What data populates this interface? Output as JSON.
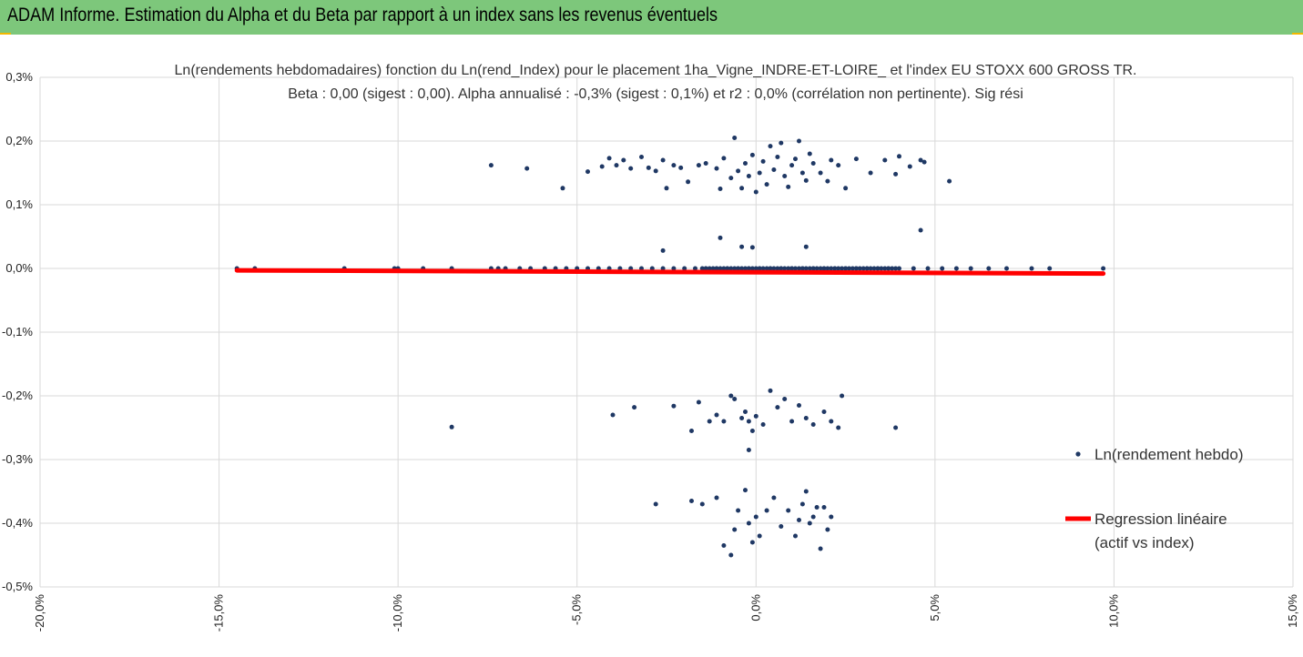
{
  "banner": {
    "title": "ADAM Informe. Estimation du Alpha et du Beta par rapport à un index sans les revenus éventuels",
    "background": "#7dc77b",
    "corner_color": "#f2b800"
  },
  "chart_data": {
    "type": "scatter",
    "title": "Ln(rendements hebdomadaires) fonction du Ln(rend_Index) pour le placement 1ha_Vigne_INDRE-ET-LOIRE_ et l'index EU STOXX 600 GROSS TR.",
    "subtitle": "Beta : 0,00 (sigest : 0,00).  Alpha annualisé : -0,3% (sigest : 0,1%) et r2 : 0,0% (corrélation non pertinente). Sig rési",
    "xlabel": "",
    "ylabel": "",
    "xlim": [
      -20,
      15
    ],
    "ylim": [
      -0.5,
      0.3
    ],
    "x_ticks": [
      "-20,0%",
      "-15,0%",
      "-10,0%",
      "-5,0%",
      "0,0%",
      "5,0%",
      "10,0%",
      "15,0%"
    ],
    "y_ticks": [
      "0,3%",
      "0,2%",
      "0,1%",
      "0,0%",
      "-0,1%",
      "-0,2%",
      "-0,3%",
      "-0,4%",
      "-0,5%"
    ],
    "grid": true,
    "legend_position": "right",
    "series": [
      {
        "name": "Ln(rendement hebdo)",
        "color": "#1f3864",
        "points": [
          [
            -14.5,
            0.0
          ],
          [
            -14.0,
            0.0
          ],
          [
            -11.5,
            0.0
          ],
          [
            -10.1,
            0.0
          ],
          [
            -10.0,
            0.0
          ],
          [
            -9.3,
            0.0
          ],
          [
            -8.5,
            0.0
          ],
          [
            -7.4,
            0.0
          ],
          [
            -7.2,
            0.0
          ],
          [
            -7.0,
            0.0
          ],
          [
            -6.6,
            0.0
          ],
          [
            -6.3,
            0.0
          ],
          [
            -5.9,
            0.0
          ],
          [
            -5.6,
            0.0
          ],
          [
            -5.3,
            0.0
          ],
          [
            -5.0,
            0.0
          ],
          [
            -4.7,
            0.0
          ],
          [
            -4.4,
            0.0
          ],
          [
            -4.1,
            0.0
          ],
          [
            -3.8,
            0.0
          ],
          [
            -3.5,
            0.0
          ],
          [
            -3.2,
            0.0
          ],
          [
            -2.9,
            0.0
          ],
          [
            -2.6,
            0.0
          ],
          [
            -2.3,
            0.0
          ],
          [
            -2.0,
            0.0
          ],
          [
            -1.7,
            0.0
          ],
          [
            -1.4,
            0.0
          ],
          [
            -1.1,
            0.0
          ],
          [
            -0.8,
            0.0
          ],
          [
            -0.5,
            0.0
          ],
          [
            -0.2,
            0.0
          ],
          [
            0.1,
            0.0
          ],
          [
            0.4,
            0.0
          ],
          [
            0.7,
            0.0
          ],
          [
            1.0,
            0.0
          ],
          [
            1.3,
            0.0
          ],
          [
            1.6,
            0.0
          ],
          [
            1.9,
            0.0
          ],
          [
            2.2,
            0.0
          ],
          [
            2.5,
            0.0
          ],
          [
            2.8,
            0.0
          ],
          [
            3.1,
            0.0
          ],
          [
            3.4,
            0.0
          ],
          [
            3.7,
            0.0
          ],
          [
            4.0,
            0.0
          ],
          [
            4.4,
            0.0
          ],
          [
            4.8,
            0.0
          ],
          [
            5.2,
            0.0
          ],
          [
            5.6,
            0.0
          ],
          [
            6.0,
            0.0
          ],
          [
            6.5,
            0.0
          ],
          [
            7.0,
            0.0
          ],
          [
            7.7,
            0.0
          ],
          [
            8.2,
            0.0
          ],
          [
            9.7,
            0.0
          ],
          [
            -7.4,
            0.162
          ],
          [
            -6.4,
            0.157
          ],
          [
            -5.4,
            0.126
          ],
          [
            -4.7,
            0.152
          ],
          [
            -4.3,
            0.16
          ],
          [
            -4.1,
            0.173
          ],
          [
            -3.9,
            0.162
          ],
          [
            -3.7,
            0.17
          ],
          [
            -3.5,
            0.157
          ],
          [
            -3.2,
            0.175
          ],
          [
            -3.0,
            0.158
          ],
          [
            -2.8,
            0.153
          ],
          [
            -2.6,
            0.17
          ],
          [
            -2.5,
            0.126
          ],
          [
            -2.3,
            0.162
          ],
          [
            -2.1,
            0.158
          ],
          [
            -1.9,
            0.136
          ],
          [
            -1.6,
            0.162
          ],
          [
            -1.4,
            0.165
          ],
          [
            -1.1,
            0.157
          ],
          [
            -1.0,
            0.125
          ],
          [
            -0.9,
            0.173
          ],
          [
            -0.7,
            0.142
          ],
          [
            -0.6,
            0.205
          ],
          [
            -0.5,
            0.153
          ],
          [
            -0.4,
            0.126
          ],
          [
            -0.3,
            0.165
          ],
          [
            -0.2,
            0.145
          ],
          [
            -0.1,
            0.178
          ],
          [
            0.0,
            0.12
          ],
          [
            0.1,
            0.15
          ],
          [
            0.2,
            0.168
          ],
          [
            0.3,
            0.132
          ],
          [
            0.4,
            0.192
          ],
          [
            0.5,
            0.155
          ],
          [
            0.6,
            0.175
          ],
          [
            0.7,
            0.197
          ],
          [
            0.8,
            0.145
          ],
          [
            0.9,
            0.128
          ],
          [
            1.0,
            0.162
          ],
          [
            1.1,
            0.172
          ],
          [
            1.2,
            0.2
          ],
          [
            1.3,
            0.15
          ],
          [
            1.4,
            0.138
          ],
          [
            1.5,
            0.18
          ],
          [
            1.6,
            0.165
          ],
          [
            1.8,
            0.15
          ],
          [
            2.0,
            0.137
          ],
          [
            2.1,
            0.17
          ],
          [
            2.3,
            0.162
          ],
          [
            2.5,
            0.126
          ],
          [
            2.8,
            0.172
          ],
          [
            3.2,
            0.15
          ],
          [
            3.6,
            0.17
          ],
          [
            3.9,
            0.148
          ],
          [
            4.0,
            0.176
          ],
          [
            4.3,
            0.16
          ],
          [
            4.6,
            0.17
          ],
          [
            4.7,
            0.167
          ],
          [
            5.4,
            0.137
          ],
          [
            -2.6,
            0.028
          ],
          [
            -1.0,
            0.048
          ],
          [
            -0.4,
            0.034
          ],
          [
            -0.1,
            0.033
          ],
          [
            1.4,
            0.034
          ],
          [
            4.6,
            0.06
          ],
          [
            -8.5,
            -0.249
          ],
          [
            -4.0,
            -0.23
          ],
          [
            -3.4,
            -0.218
          ],
          [
            -2.3,
            -0.216
          ],
          [
            -1.8,
            -0.255
          ],
          [
            -1.6,
            -0.21
          ],
          [
            -1.3,
            -0.24
          ],
          [
            -1.1,
            -0.23
          ],
          [
            -0.9,
            -0.24
          ],
          [
            -0.7,
            -0.2
          ],
          [
            -0.6,
            -0.205
          ],
          [
            -0.4,
            -0.235
          ],
          [
            -0.3,
            -0.225
          ],
          [
            -0.2,
            -0.24
          ],
          [
            -0.1,
            -0.255
          ],
          [
            0.0,
            -0.232
          ],
          [
            0.2,
            -0.245
          ],
          [
            0.4,
            -0.192
          ],
          [
            0.6,
            -0.218
          ],
          [
            0.8,
            -0.205
          ],
          [
            1.0,
            -0.24
          ],
          [
            1.2,
            -0.215
          ],
          [
            1.4,
            -0.235
          ],
          [
            1.6,
            -0.245
          ],
          [
            1.9,
            -0.225
          ],
          [
            2.1,
            -0.24
          ],
          [
            2.3,
            -0.25
          ],
          [
            2.4,
            -0.2
          ],
          [
            3.9,
            -0.25
          ],
          [
            -0.2,
            -0.285
          ],
          [
            -2.8,
            -0.37
          ],
          [
            -1.8,
            -0.365
          ],
          [
            -1.5,
            -0.37
          ],
          [
            -1.1,
            -0.36
          ],
          [
            -0.9,
            -0.435
          ],
          [
            -0.7,
            -0.45
          ],
          [
            -0.6,
            -0.41
          ],
          [
            -0.5,
            -0.38
          ],
          [
            -0.3,
            -0.348
          ],
          [
            -0.2,
            -0.4
          ],
          [
            0.0,
            -0.39
          ],
          [
            0.1,
            -0.42
          ],
          [
            0.3,
            -0.38
          ],
          [
            0.5,
            -0.36
          ],
          [
            0.7,
            -0.405
          ],
          [
            0.9,
            -0.38
          ],
          [
            1.1,
            -0.42
          ],
          [
            1.2,
            -0.395
          ],
          [
            1.3,
            -0.37
          ],
          [
            1.4,
            -0.35
          ],
          [
            1.5,
            -0.4
          ],
          [
            1.6,
            -0.39
          ],
          [
            1.7,
            -0.375
          ],
          [
            1.8,
            -0.44
          ],
          [
            1.9,
            -0.375
          ],
          [
            2.0,
            -0.41
          ],
          [
            2.1,
            -0.39
          ],
          [
            -0.1,
            -0.43
          ]
        ]
      },
      {
        "name": "Regression linéaire (actif vs index)",
        "color": "#ff0000",
        "line": [
          [
            -14.5,
            -0.003
          ],
          [
            9.7,
            -0.008
          ]
        ]
      }
    ]
  }
}
